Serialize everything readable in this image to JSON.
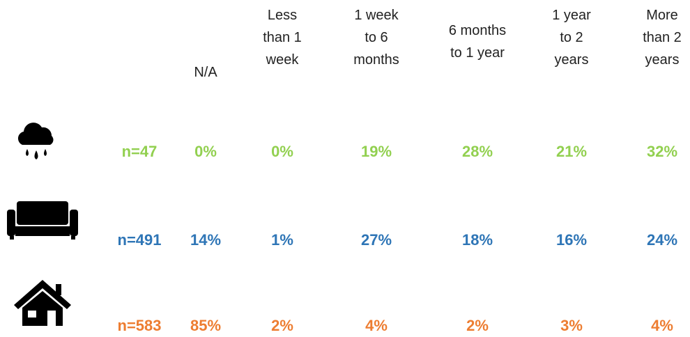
{
  "table": {
    "columns": [
      [
        "N/A"
      ],
      [
        "Less",
        "than 1",
        "week"
      ],
      [
        "1 week",
        "to 6",
        "months"
      ],
      [
        "6 months",
        "to 1 year"
      ],
      [
        "1 year",
        "to 2",
        "years"
      ],
      [
        "More",
        "than 2",
        "years"
      ]
    ],
    "rows": [
      {
        "n": "n=47",
        "color": "#92d050",
        "cells": [
          "0%",
          "0%",
          "19%",
          "28%",
          "21%",
          "32%"
        ]
      },
      {
        "n": "n=491",
        "color": "#2e75b6",
        "cells": [
          "14%",
          "1%",
          "27%",
          "18%",
          "16%",
          "24%"
        ]
      },
      {
        "n": "n=583",
        "color": "#ed7d31",
        "cells": [
          "85%",
          "2%",
          "4%",
          "2%",
          "3%",
          "4%"
        ]
      }
    ]
  }
}
